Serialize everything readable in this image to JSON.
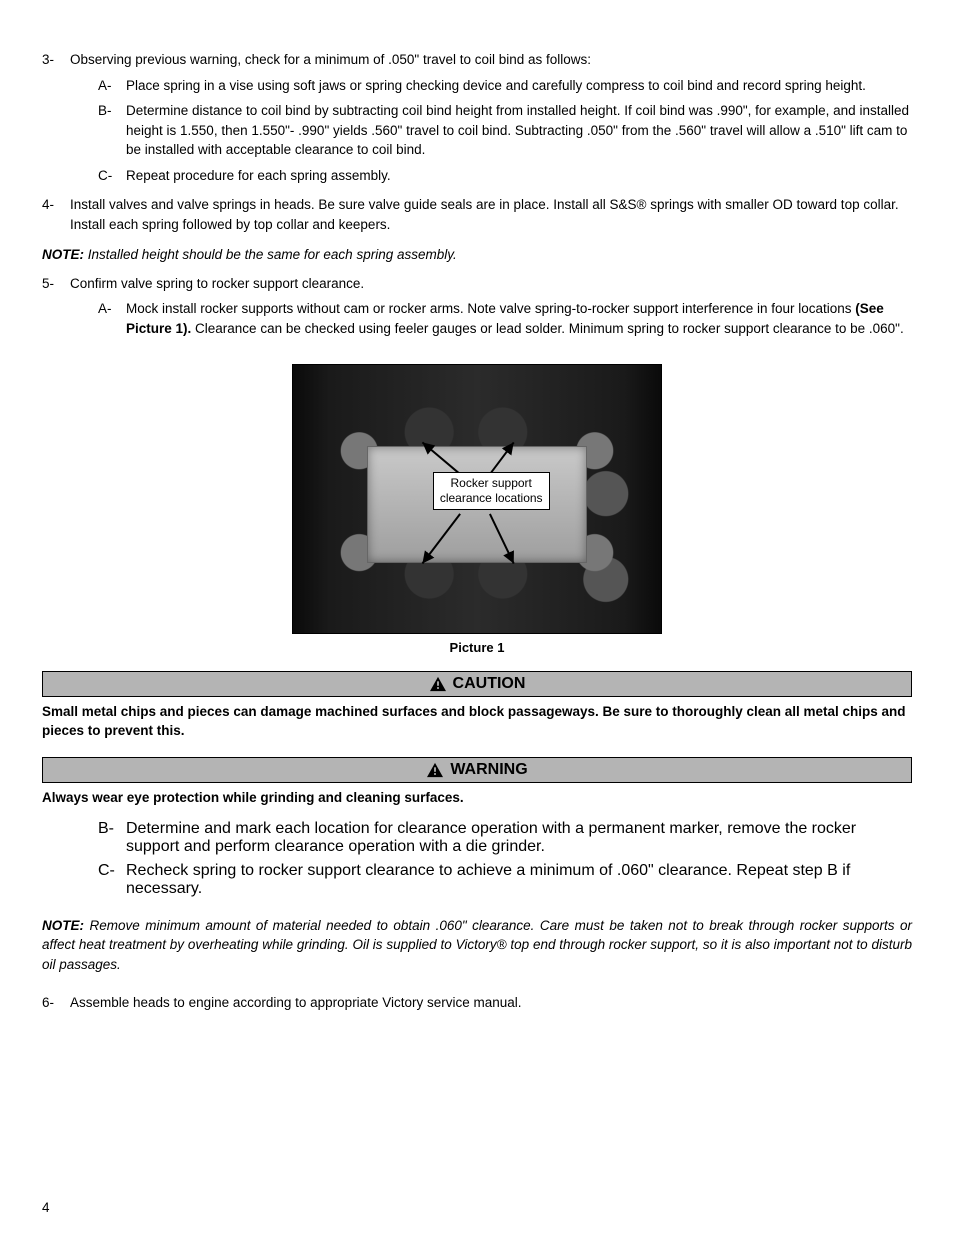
{
  "steps_part1": [
    {
      "num": "3-",
      "text": "Observing previous warning, check for a minimum of .050\" travel to coil bind as follows:",
      "sub": [
        {
          "let": "A-",
          "text": "Place spring in a vise using soft jaws or spring checking device and carefully compress to coil bind and record spring height."
        },
        {
          "let": "B-",
          "text": "Determine distance to coil bind by subtracting coil bind height from installed height.  If  coil bind was .990\", for example, and installed height is 1.550, then 1.550\"- .990\" yields .560\" travel to coil bind.  Subtracting .050\" from the .560\" travel will allow a .510\" lift cam to be installed with acceptable clearance to coil bind."
        },
        {
          "let": "C-",
          "text": "Repeat procedure for each spring assembly."
        }
      ]
    },
    {
      "num": "4-",
      "text": "Install valves and valve springs in heads. Be sure valve guide seals are in place. Install all S&S® springs with smaller OD toward top collar. Install each spring followed by top collar and keepers.",
      "sub": []
    }
  ],
  "note1": {
    "label": "NOTE:",
    "text": "Installed height should be the same for each spring assembly."
  },
  "step5": {
    "num": "5-",
    "text": "Confirm valve spring to rocker support clearance.",
    "sub": [
      {
        "let": "A-",
        "pre": "Mock install rocker supports without cam or rocker arms.  Note valve spring-to-rocker support interference in four locations ",
        "bold": "(See Picture 1).",
        "post": " Clearance can be checked using feeler gauges or lead solder.  Minimum spring to rocker support clearance to be .060\"."
      }
    ]
  },
  "figure": {
    "callout": "Rocker support\nclearance locations",
    "caption": "Picture 1"
  },
  "caution": {
    "heading": "CAUTION",
    "text": "Small metal chips and pieces can damage machined surfaces and block passageways. Be sure to thoroughly clean all metal chips and pieces to prevent this."
  },
  "warning": {
    "heading": "WARNING",
    "text": "Always wear eye protection while grinding and cleaning surfaces."
  },
  "step5_cont": [
    {
      "let": "B-",
      "text": "Determine and mark each location for clearance operation with a permanent marker, remove the rocker support and perform clearance operation with a die grinder."
    },
    {
      "let": "C-",
      "text": "Recheck spring to rocker support clearance to achieve a minimum of .060\" clearance. Repeat step B if necessary."
    }
  ],
  "note2": {
    "label": "NOTE:",
    "text": "Remove minimum amount of material needed to obtain .060\" clearance. Care must be taken not to break through rocker supports or affect heat treatment by overheating while grinding. Oil is supplied to Victory® top end through rocker support, so it is also important not to disturb oil passages."
  },
  "step6": {
    "num": "6-",
    "text": "Assemble heads to engine according to appropriate Victory service manual."
  },
  "page_number": "4",
  "colors": {
    "banner_bg": "#b4b4b4",
    "text": "#000000",
    "page_bg": "#ffffff"
  }
}
